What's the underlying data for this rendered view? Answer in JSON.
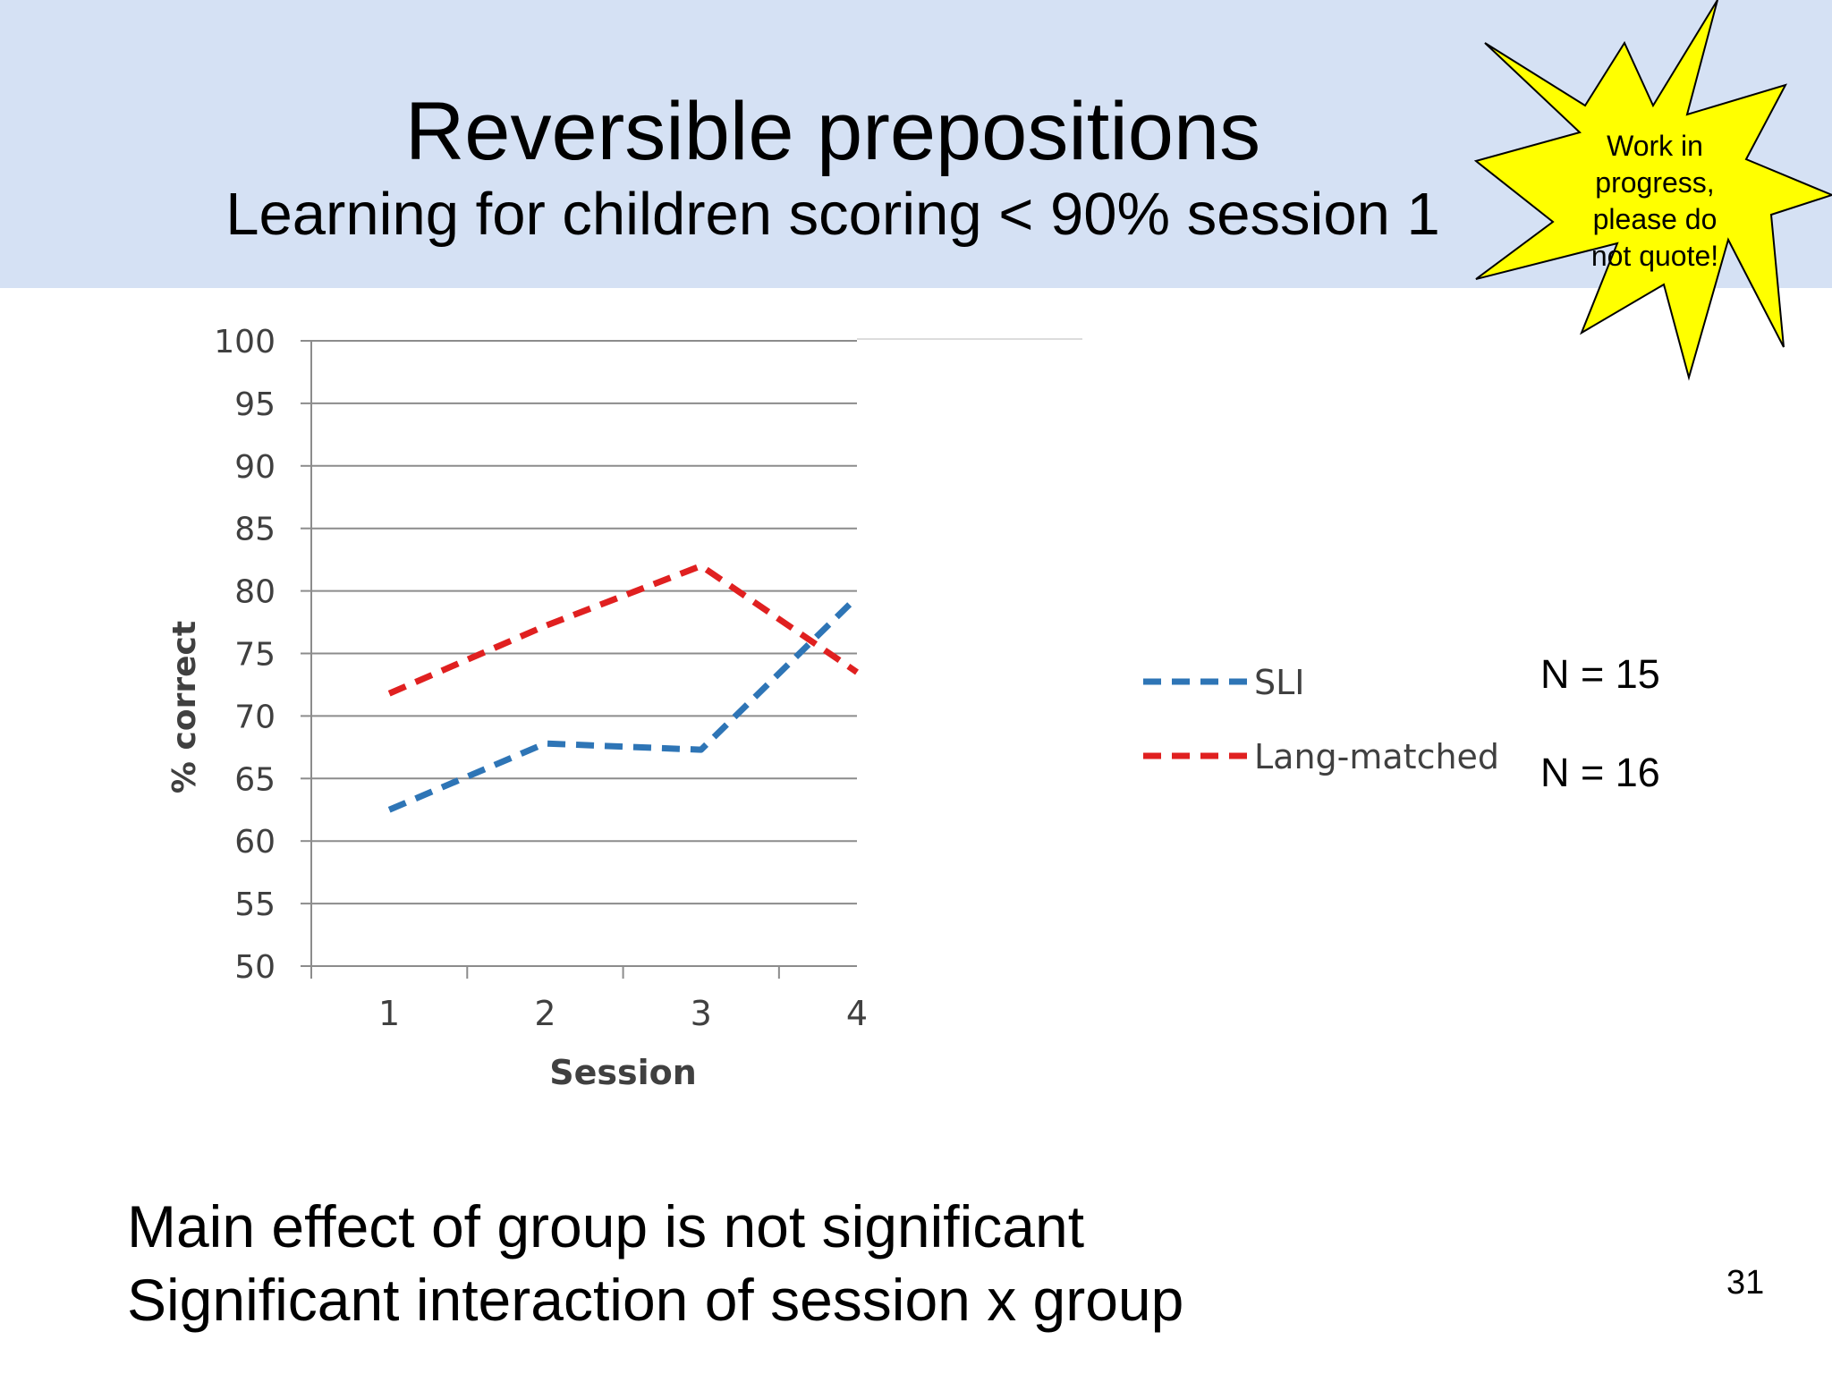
{
  "slide": {
    "title": "Reversible prepositions",
    "subtitle": "Learning for children scoring < 90% session 1",
    "callout_lines": [
      "Work in",
      "progress,",
      "please do",
      "not quote!"
    ],
    "n_labels": [
      "N = 15",
      "N = 16"
    ],
    "notes": [
      "Main effect of group is not significant",
      "Significant interaction of session x group"
    ],
    "page_number": "31",
    "colors": {
      "header_background": "#d5e1f4",
      "callout_fill": "#ffff00",
      "sli_series": "#2e75b6",
      "lang_matched_series": "#e02020"
    }
  },
  "chart_data": {
    "type": "line",
    "title": "",
    "xlabel": "Session",
    "ylabel": "% correct",
    "x": [
      1,
      2,
      3,
      4
    ],
    "x_tick_labels": [
      "1",
      "2",
      "3",
      "4"
    ],
    "ylim": [
      50,
      100
    ],
    "y_ticks": [
      50,
      55,
      60,
      65,
      70,
      75,
      80,
      85,
      90,
      95,
      100
    ],
    "y_tick_labels": [
      "50",
      "55",
      "60",
      "65",
      "70",
      "75",
      "80",
      "85",
      "90",
      "95",
      "100"
    ],
    "grid": true,
    "legend_position": "right",
    "series": [
      {
        "name": "SLI",
        "values": [
          62.5,
          67.8,
          67.3,
          79.5
        ],
        "color": "#2e75b6",
        "style": "dashed"
      },
      {
        "name": "Lang-matched",
        "values": [
          71.8,
          77.2,
          82,
          73.5
        ],
        "color": "#e02020",
        "style": "dashed"
      }
    ]
  }
}
